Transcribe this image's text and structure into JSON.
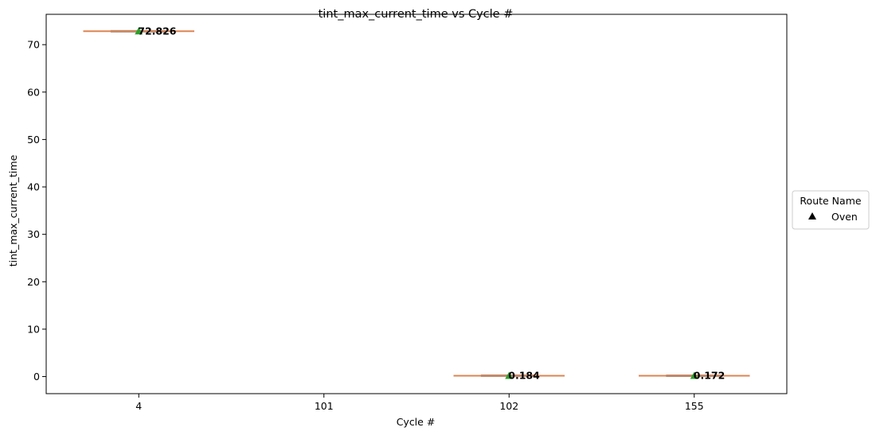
{
  "chart_data": {
    "type": "box",
    "title": "tint_max_current_time vs Cycle #",
    "xlabel": "Cycle #",
    "ylabel": "tint_max_current_time",
    "categories": [
      "4",
      "101",
      "102",
      "155"
    ],
    "ylim": [
      -3.6,
      76.4
    ],
    "yticks": [
      0,
      10,
      20,
      30,
      40,
      50,
      60,
      70
    ],
    "grid": false,
    "series": [
      {
        "name": "Oven",
        "marker": "triangle",
        "values": [
          {
            "category": "4",
            "value": 72.826,
            "label": "72.826"
          },
          {
            "category": "101",
            "value": null,
            "label": ""
          },
          {
            "category": "102",
            "value": 0.184,
            "label": "0.184"
          },
          {
            "category": "155",
            "value": 0.172,
            "label": "0.172"
          }
        ]
      }
    ],
    "legend": {
      "title": "Route Name",
      "placement": "right-outside",
      "entries": [
        "Oven"
      ]
    },
    "colors": {
      "median": "#dd8452",
      "box": "#8c8c8c",
      "marker": "#2ca02c"
    }
  }
}
